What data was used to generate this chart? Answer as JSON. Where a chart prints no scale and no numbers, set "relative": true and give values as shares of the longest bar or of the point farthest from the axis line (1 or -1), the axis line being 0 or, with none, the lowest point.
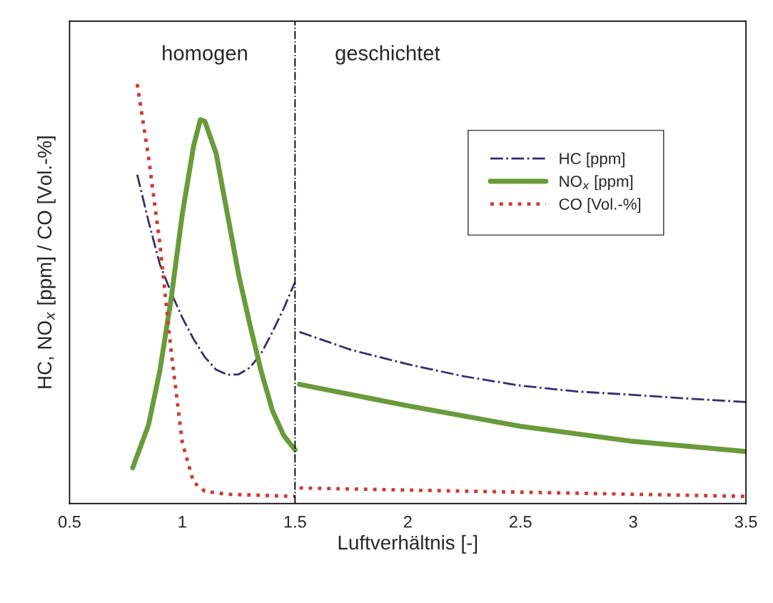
{
  "chart_data": {
    "type": "line",
    "xlabel": "Luftverhältnis [-]",
    "ylabel": "HC, NO$_{x}$ [ppm] / CO [Vol.-%]",
    "relative": true,
    "xlim": [
      0.5,
      3.5
    ],
    "xticks": [
      0.5,
      1,
      1.5,
      2,
      2.5,
      3,
      3.5
    ],
    "grid": false,
    "legend": "top right",
    "series": [
      {
        "name": "HC [ppm]",
        "color": "#3b2c6e",
        "line_style": "dashdot",
        "x": [
          0.8,
          0.85,
          0.9,
          0.95,
          1.0,
          1.05,
          1.1,
          1.15,
          1.2,
          1.25,
          1.3,
          1.35,
          1.4,
          1.45,
          1.5,
          1.51,
          1.52,
          1.75,
          2.0,
          2.25,
          2.5,
          2.75,
          3.0,
          3.25,
          3.5
        ],
        "values": [
          0.784,
          0.673,
          0.571,
          0.503,
          0.443,
          0.392,
          0.349,
          0.319,
          0.307,
          0.308,
          0.324,
          0.358,
          0.409,
          0.465,
          0.528,
          null,
          0.409,
          0.366,
          0.332,
          0.303,
          0.281,
          0.267,
          0.259,
          0.25,
          0.242
        ]
      },
      {
        "name": "NO$_{x}$ [ppm]",
        "color": "#6a9a3a",
        "line_style": "solid",
        "x": [
          0.78,
          0.85,
          0.9,
          0.95,
          1.0,
          1.05,
          1.08,
          1.1,
          1.15,
          1.2,
          1.25,
          1.3,
          1.35,
          1.4,
          1.45,
          1.5,
          1.51,
          1.52,
          2.0,
          2.5,
          3.0,
          3.5
        ],
        "values": [
          0.085,
          0.187,
          0.315,
          0.486,
          0.69,
          0.852,
          0.915,
          0.911,
          0.835,
          0.69,
          0.545,
          0.426,
          0.315,
          0.221,
          0.162,
          0.128,
          null,
          0.284,
          0.233,
          0.184,
          0.148,
          0.124
        ]
      },
      {
        "name": "CO [Vol.-%]",
        "color": "#d03a30",
        "line_style": "dotted",
        "x": [
          0.8,
          0.85,
          0.9,
          0.95,
          1.0,
          1.05,
          1.1,
          1.2,
          1.5,
          1.51,
          1.52,
          2.0,
          2.5,
          3.0,
          3.5
        ],
        "values": [
          1.0,
          0.826,
          0.622,
          0.366,
          0.145,
          0.051,
          0.029,
          0.022,
          0.017,
          null,
          0.037,
          0.032,
          0.027,
          0.022,
          0.017
        ]
      }
    ],
    "ref_lines": [
      {
        "axis": "x",
        "value": 1.5,
        "color": "#000000",
        "line_style": "dashdot"
      }
    ],
    "annotations": [
      "homogen",
      "geschichtet"
    ]
  }
}
